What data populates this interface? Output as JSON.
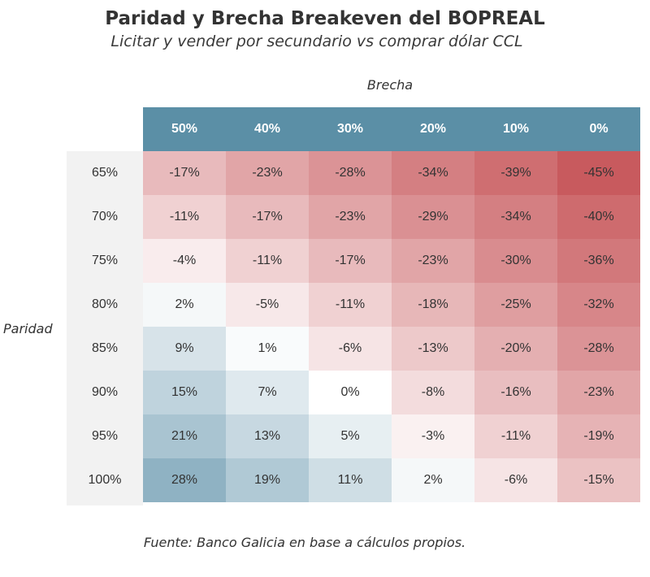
{
  "title": "Paridad y Brecha Breakeven del BOPREAL",
  "subtitle": "Licitar y vender por secundario vs comprar dólar CCL",
  "source": "Fuente: Banco Galicia en base a cálculos propios.",
  "colors": {
    "header": "#5b8fa6",
    "negative": "#c85a5e",
    "positive": "#8fb2c3",
    "neutral": "#ffffff"
  },
  "chart_data": {
    "type": "heatmap",
    "xlabel": "Brecha",
    "ylabel": "Paridad",
    "columns": [
      "50%",
      "40%",
      "30%",
      "20%",
      "10%",
      "0%"
    ],
    "rows": [
      "65%",
      "70%",
      "75%",
      "80%",
      "85%",
      "90%",
      "95%",
      "100%"
    ],
    "values": [
      [
        -17,
        -23,
        -28,
        -34,
        -39,
        -45
      ],
      [
        -11,
        -17,
        -23,
        -29,
        -34,
        -40
      ],
      [
        -4,
        -11,
        -17,
        -23,
        -30,
        -36
      ],
      [
        2,
        -5,
        -11,
        -18,
        -25,
        -32
      ],
      [
        9,
        1,
        -6,
        -13,
        -20,
        -28
      ],
      [
        15,
        7,
        0,
        -8,
        -16,
        -23
      ],
      [
        21,
        13,
        5,
        -3,
        -11,
        -19
      ],
      [
        28,
        19,
        11,
        2,
        -6,
        -15
      ]
    ],
    "value_suffix": "%"
  }
}
